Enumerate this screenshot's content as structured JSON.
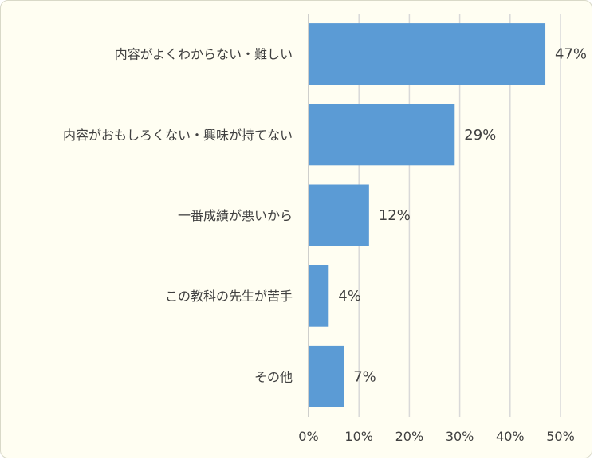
{
  "chart_data": {
    "type": "bar",
    "orientation": "horizontal",
    "categories": [
      "内容がよくわからない・難しい",
      "内容がおもしろくない・興味が持てない",
      "一番成績が悪いから",
      "この教科の先生が苦手",
      "その他"
    ],
    "values": [
      47,
      29,
      12,
      4,
      7
    ],
    "value_labels": [
      "47%",
      "29%",
      "12%",
      "4%",
      "7%"
    ],
    "xlim": [
      0,
      50
    ],
    "x_ticks": [
      0,
      10,
      20,
      30,
      40,
      50
    ],
    "x_tick_labels": [
      "0%",
      "10%",
      "20%",
      "30%",
      "40%",
      "50%"
    ],
    "title": "",
    "xlabel": "",
    "ylabel": "",
    "grid": "vertical",
    "legend": "none",
    "bar_color": "#5b9bd5",
    "background_color": "#fffef2",
    "gridline_color": "#d9d9d9"
  }
}
